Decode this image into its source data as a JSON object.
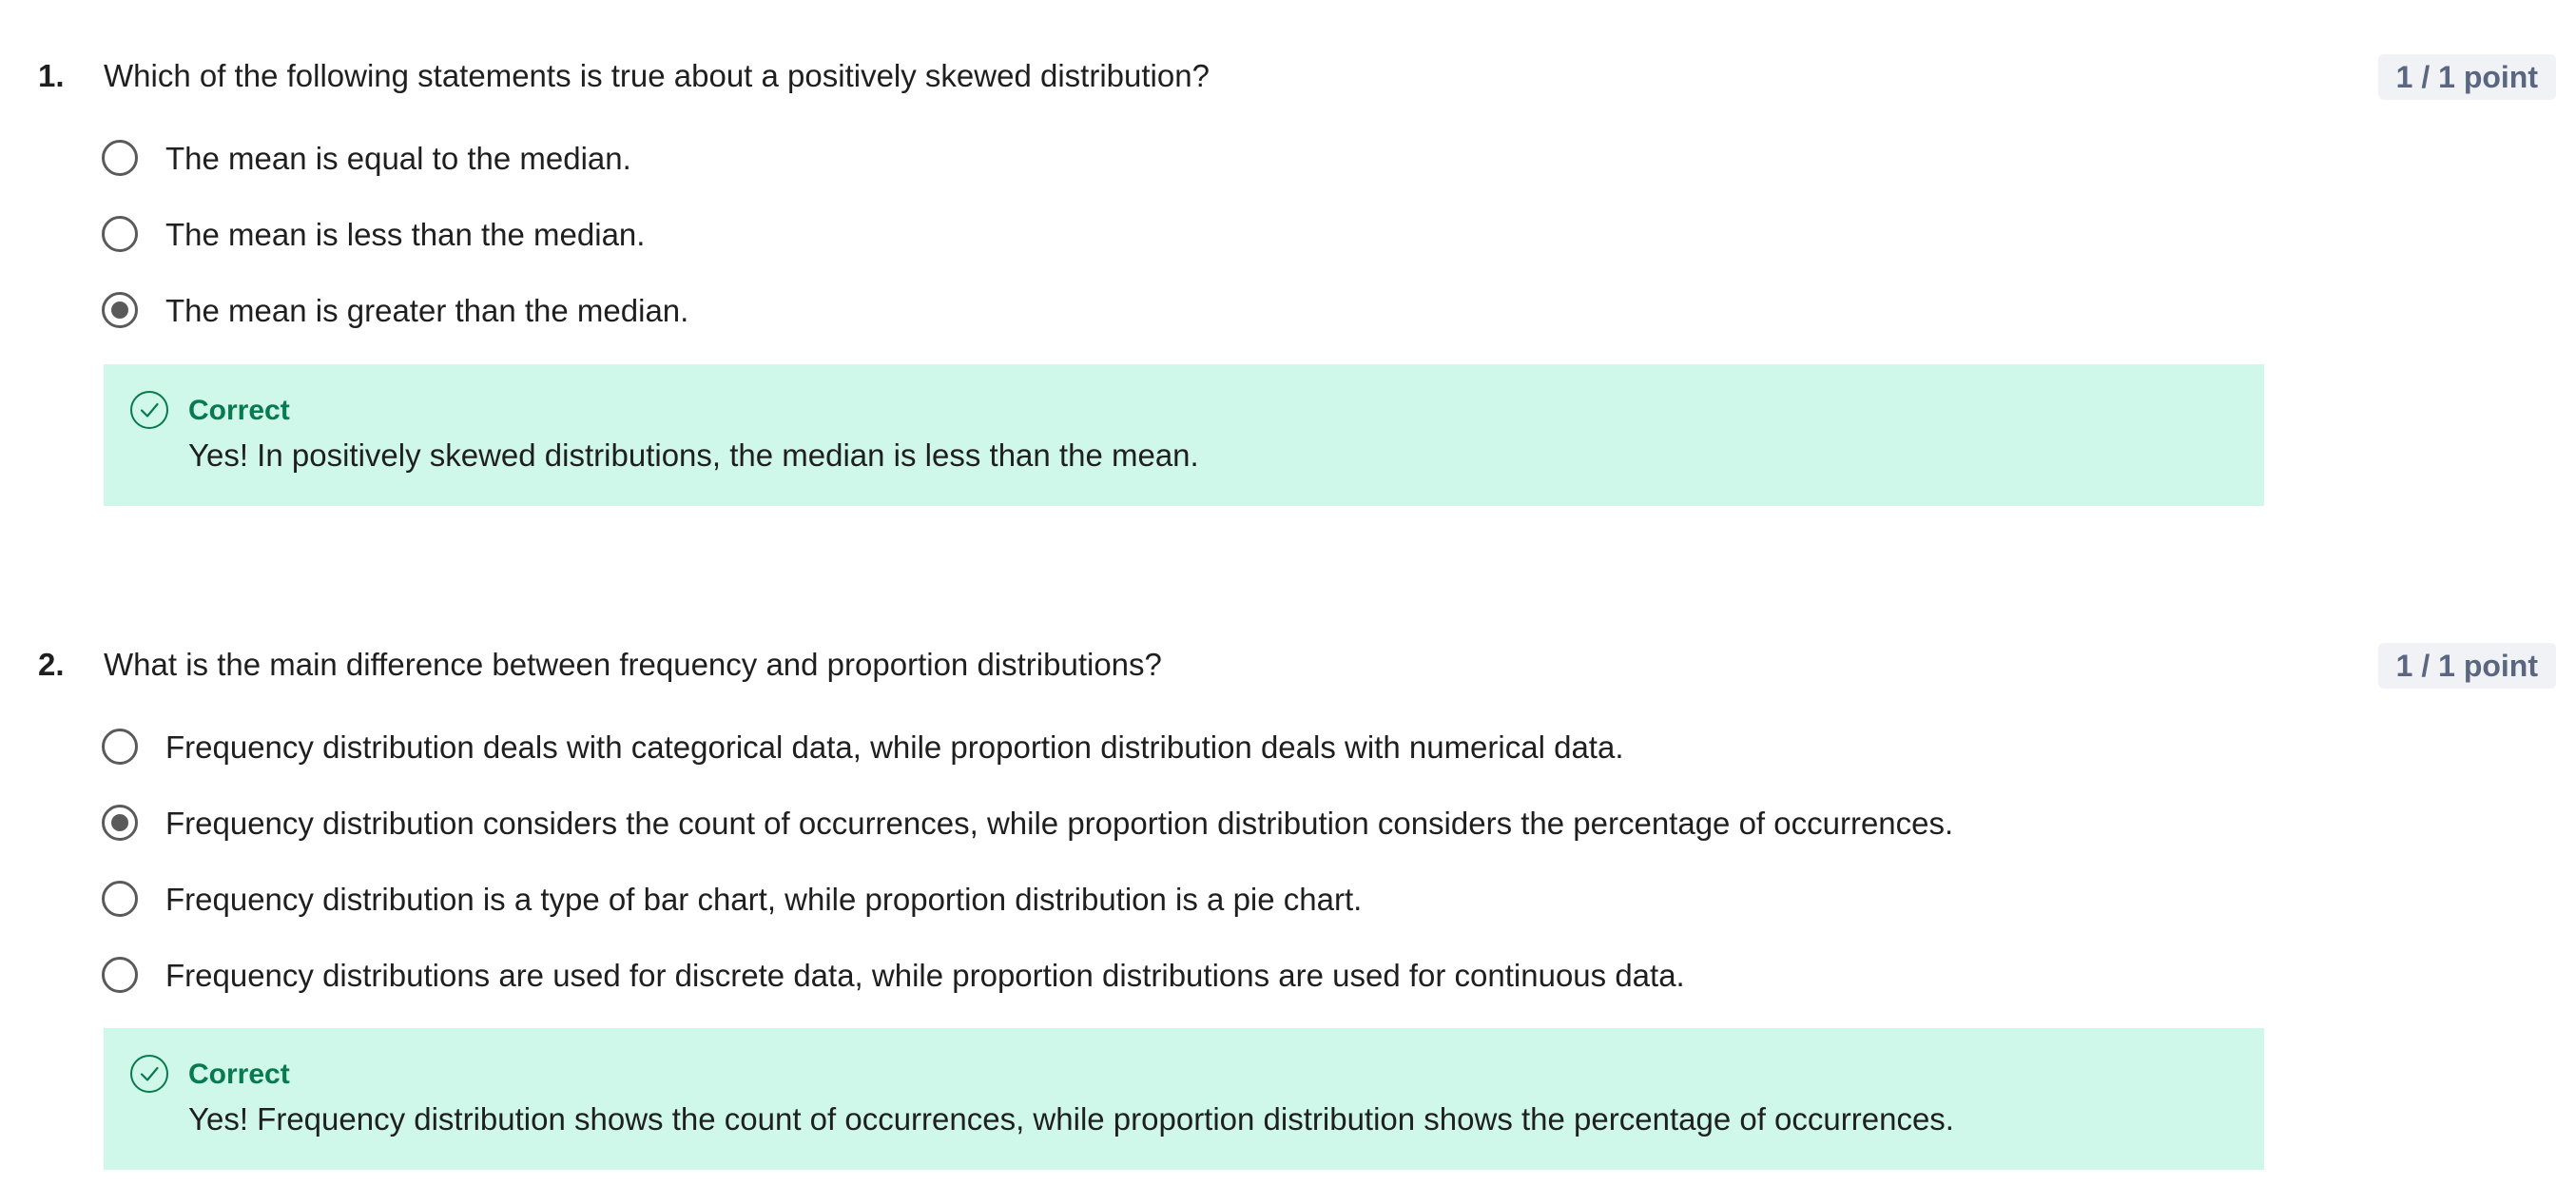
{
  "questions": [
    {
      "number": "1.",
      "text": "Which of the following statements is true about a positively skewed distribution?",
      "points": "1 / 1 point",
      "options": [
        {
          "label": "The mean is equal to the median.",
          "selected": false
        },
        {
          "label": "The mean is less than the median.",
          "selected": false
        },
        {
          "label": "The mean is greater than the median.",
          "selected": true
        }
      ],
      "feedback": {
        "status": "Correct",
        "icon": "check-circle-icon",
        "text": "Yes!  In positively skewed distributions, the median is less than the mean."
      }
    },
    {
      "number": "2.",
      "text": "What is the main difference between frequency and proportion distributions?",
      "points": "1 / 1 point",
      "options": [
        {
          "label": "Frequency distribution deals with categorical data, while proportion distribution deals with numerical data.",
          "selected": false
        },
        {
          "label": "Frequency distribution considers the count of occurrences, while proportion distribution considers the percentage of occurrences.",
          "selected": true
        },
        {
          "label": "Frequency distribution is a type of bar chart, while proportion distribution is a pie chart.",
          "selected": false
        },
        {
          "label": "Frequency distributions are used for discrete data, while proportion distributions are used for continuous data.",
          "selected": false
        }
      ],
      "feedback": {
        "status": "Correct",
        "icon": "check-circle-icon",
        "text": "Yes! Frequency distribution shows the count of occurrences, while proportion distribution shows the percentage of occurrences."
      }
    }
  ],
  "colors": {
    "feedback_background": "#cff8ea",
    "correct_green": "#087a4f",
    "badge_background": "#f0f2f6",
    "badge_text": "#5b6780",
    "radio": "#5a5a5a"
  }
}
